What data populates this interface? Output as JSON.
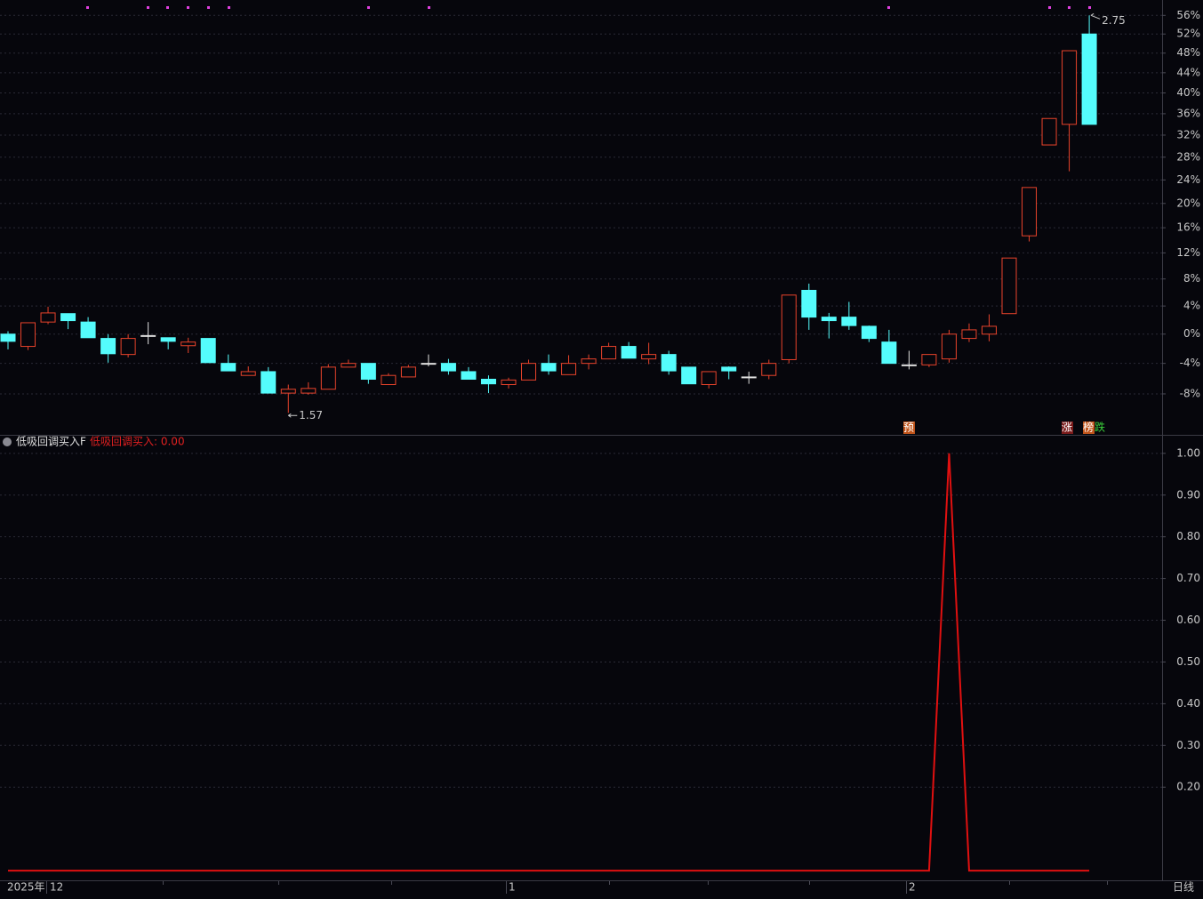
{
  "chart_data": [
    {
      "type": "candlestick",
      "open": [
        0,
        -1.7,
        1.7,
        2.9,
        1.7,
        -0.6,
        -2.8,
        -0.2,
        -0.5,
        -1.6,
        -0.6,
        -4.0,
        -5.6,
        -5.1,
        -7.9,
        -7.9,
        -7.4,
        -4.5,
        -4.0,
        -6.8,
        -5.8,
        -4.0,
        -4.0,
        -5.1,
        -6.1,
        -6.8,
        -6.2,
        -4.0,
        -5.5,
        -4.0,
        -3.4,
        -1.7,
        -3.4,
        -2.8,
        -4.5,
        -6.8,
        -4.5,
        -5.8,
        -5.6,
        -3.5,
        6.3,
        2.4,
        2.4,
        1.1,
        -1.1,
        -4.2,
        -4.2,
        -3.4,
        -0.6,
        0,
        2.9,
        14.7,
        30.2,
        34.0,
        52.0
      ],
      "high": [
        0.4,
        1.6,
        3.9,
        2.9,
        2.4,
        0,
        0,
        1.7,
        -0.5,
        -0.5,
        -0.6,
        -2.8,
        -4.4,
        -4.5,
        -6.8,
        -6.5,
        -4.1,
        -3.5,
        -4.0,
        -5.3,
        -4.2,
        -2.8,
        -3.4,
        -4.5,
        -5.6,
        -5.9,
        -3.5,
        -2.8,
        -2.9,
        -2.8,
        -1.2,
        -1.1,
        -1.2,
        -2.3,
        -4.5,
        -5.1,
        -4.4,
        -5.1,
        -3.5,
        5.6,
        7.3,
        3.0,
        4.6,
        1.2,
        0.6,
        -2.3,
        -2.8,
        0.6,
        1.5,
        2.8,
        11.2,
        22.7,
        35.1,
        48.5,
        56.0
      ],
      "low": [
        -2.1,
        -2.2,
        1.4,
        0.7,
        -0.5,
        -3.9,
        -3.2,
        -1.4,
        -2.1,
        -2.6,
        -3.9,
        -5.0,
        -5.6,
        -7.9,
        -10.4,
        -8.1,
        -7.4,
        -4.5,
        -6.7,
        -6.8,
        -5.8,
        -4.4,
        -5.5,
        -6.1,
        -7.9,
        -7.3,
        -6.2,
        -5.5,
        -5.5,
        -4.8,
        -3.4,
        -3.3,
        -4.1,
        -5.5,
        -6.7,
        -7.3,
        -6.1,
        -6.7,
        -6.1,
        -4.0,
        0.6,
        -0.6,
        0.6,
        -1.1,
        -4.0,
        -4.8,
        -4.5,
        -3.9,
        -1.1,
        -1.0,
        2.9,
        13.8,
        30.2,
        25.5,
        34.0
      ],
      "close": [
        -1,
        1.6,
        3.0,
        1.9,
        -0.5,
        -2.7,
        -0.6,
        -0.2,
        -1.0,
        -1.1,
        -3.9,
        -5.0,
        -5.1,
        -7.9,
        -7.4,
        -7.3,
        -4.5,
        -4.0,
        -6.1,
        -5.6,
        -4.5,
        -4.0,
        -5.0,
        -6.1,
        -6.7,
        -6.2,
        -4.0,
        -5.0,
        -4.0,
        -3.4,
        -1.7,
        -3.3,
        -2.8,
        -5.0,
        -6.7,
        -5.1,
        -5.0,
        -5.8,
        -4.0,
        5.6,
        2.4,
        1.9,
        1.2,
        -0.6,
        -4.0,
        -4.2,
        -2.8,
        0,
        0.6,
        1.1,
        11.2,
        22.7,
        35.1,
        48.5,
        34.0
      ],
      "up_color": "#e8432b",
      "down_color": "#54fcfc",
      "log_scale": true,
      "grid": true,
      "ylim": [
        -13,
        58.4
      ],
      "yticks": [
        {
          "value": -8,
          "label": "-8%"
        },
        {
          "value": -4,
          "label": "-4%"
        },
        {
          "value": 0,
          "label": "0%"
        },
        {
          "value": 4,
          "label": "4%"
        },
        {
          "value": 8,
          "label": "8%"
        },
        {
          "value": 12,
          "label": "12%"
        },
        {
          "value": 16,
          "label": "16%"
        },
        {
          "value": 20,
          "label": "20%"
        },
        {
          "value": 24,
          "label": "24%"
        },
        {
          "value": 28,
          "label": "28%"
        },
        {
          "value": 32,
          "label": "32%"
        },
        {
          "value": 36,
          "label": "36%"
        },
        {
          "value": 40,
          "label": "40%"
        },
        {
          "value": 44,
          "label": "44%"
        },
        {
          "value": 48,
          "label": "48%"
        },
        {
          "value": 52,
          "label": "52%"
        },
        {
          "value": 56,
          "label": "56%"
        }
      ],
      "high_label": "2.75",
      "low_label": "1.57",
      "signals": [
        "预",
        "涨",
        "榜",
        "跌"
      ]
    },
    {
      "type": "line",
      "title": "低吸回调买入F",
      "status_label": "低吸回调买入: 0.00",
      "color": "#e01010",
      "grid": true,
      "values": [
        0,
        0,
        0,
        0,
        0,
        0,
        0,
        0,
        0,
        0,
        0,
        0,
        0,
        0,
        0,
        0,
        0,
        0,
        0,
        0,
        0,
        0,
        0,
        0,
        0,
        0,
        0,
        0,
        0,
        0,
        0,
        0,
        0,
        0,
        0,
        0,
        0,
        0,
        0,
        0,
        0,
        0,
        0,
        0,
        0,
        0,
        0,
        1,
        0,
        0,
        0,
        0,
        0,
        0,
        0
      ],
      "ylim": [
        -0.019,
        1.038
      ],
      "yticks": [
        {
          "value": 0.2,
          "label": "0.20"
        },
        {
          "value": 0.3,
          "label": "0.30"
        },
        {
          "value": 0.4,
          "label": "0.40"
        },
        {
          "value": 0.5,
          "label": "0.50"
        },
        {
          "value": 0.6,
          "label": "0.60"
        },
        {
          "value": 0.7,
          "label": "0.70"
        },
        {
          "value": 0.8,
          "label": "0.80"
        },
        {
          "value": 0.9,
          "label": "0.90"
        },
        {
          "value": 1,
          "label": "1.00"
        }
      ],
      "x_labels": [
        "2025年",
        "12",
        "1",
        "2"
      ],
      "period": "日线"
    }
  ]
}
